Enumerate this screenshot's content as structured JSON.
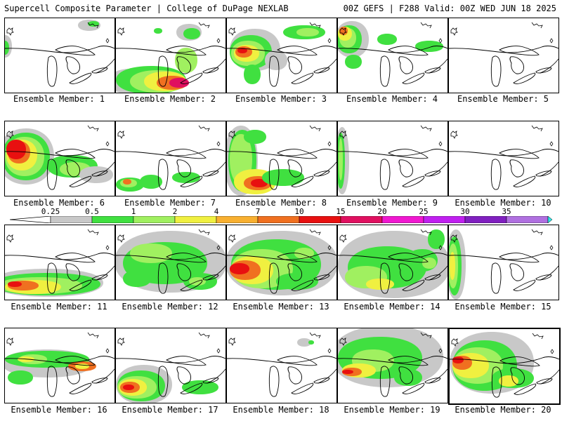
{
  "header": {
    "title": "Supercell Composite Parameter | College of DuPage NEXLAB",
    "run_info": "00Z GEFS | F288 Valid: 00Z WED JUN 18 2025"
  },
  "colorbar": {
    "labels": [
      "0.25",
      "0.5",
      "1",
      "2",
      "4",
      "7",
      "10",
      "15",
      "20",
      "25",
      "30",
      "35"
    ],
    "colors": [
      "#c8c8c8",
      "#40e040",
      "#a0f060",
      "#f0f040",
      "#f8b030",
      "#f07020",
      "#e81010",
      "#e01060",
      "#f018d0",
      "#c020f0",
      "#8020c0",
      "#b070e0",
      "#30e8e8"
    ]
  },
  "members": [
    {
      "label": "Ensemble Member: 1"
    },
    {
      "label": "Ensemble Member: 2"
    },
    {
      "label": "Ensemble Member: 3"
    },
    {
      "label": "Ensemble Member: 4"
    },
    {
      "label": "Ensemble Member: 5"
    },
    {
      "label": "Ensemble Member: 6"
    },
    {
      "label": "Ensemble Member: 7"
    },
    {
      "label": "Ensemble Member: 8"
    },
    {
      "label": "Ensemble Member: 9"
    },
    {
      "label": "Ensemble Member: 10"
    },
    {
      "label": "Ensemble Member: 11"
    },
    {
      "label": "Ensemble Member: 12"
    },
    {
      "label": "Ensemble Member: 13"
    },
    {
      "label": "Ensemble Member: 14"
    },
    {
      "label": "Ensemble Member: 15"
    },
    {
      "label": "Ensemble Member: 16"
    },
    {
      "label": "Ensemble Member: 17"
    },
    {
      "label": "Ensemble Member: 18"
    },
    {
      "label": "Ensemble Member: 19"
    },
    {
      "label": "Ensemble Member: 20"
    }
  ]
}
